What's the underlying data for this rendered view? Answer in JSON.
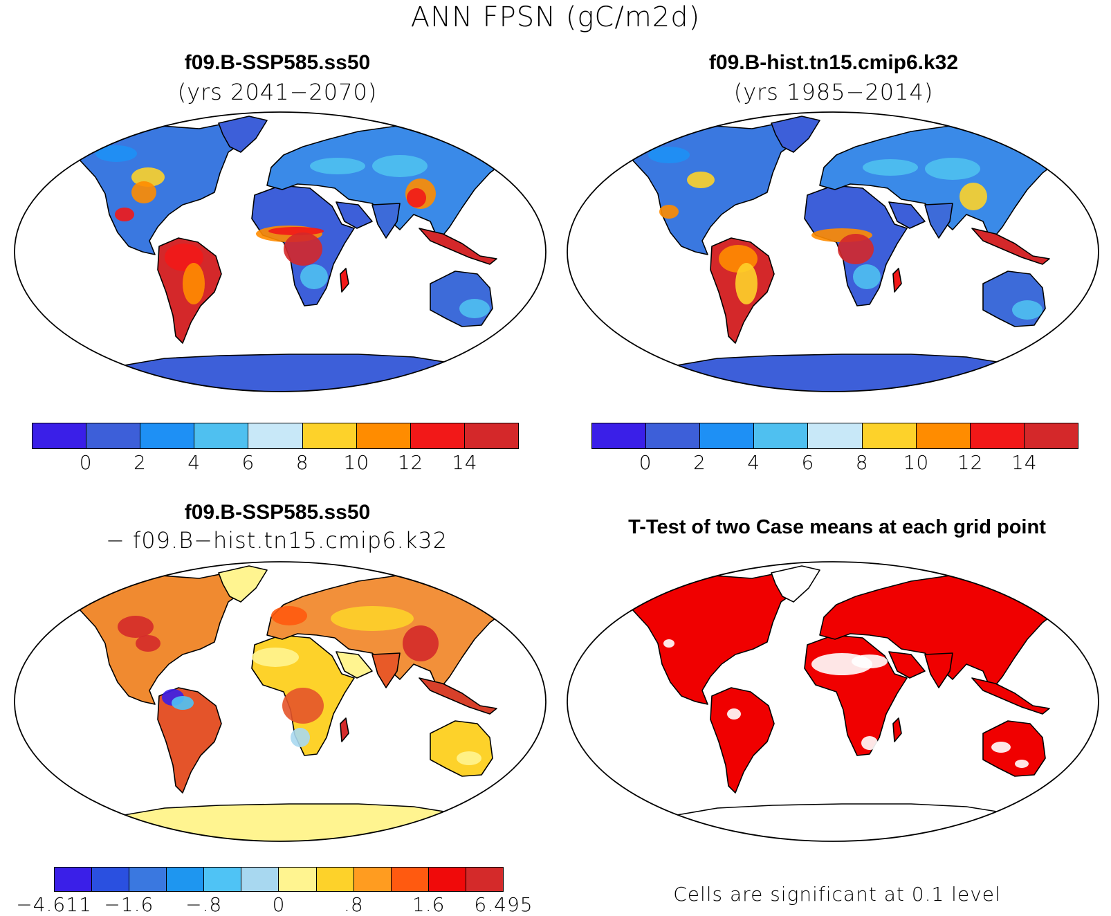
{
  "figure": {
    "title": "ANN FPSN (gC/m2d)"
  },
  "panels": [
    {
      "id": "case1",
      "title": "f09.B-SSP585.ss50",
      "subtitle": "(yrs 2041−2070)",
      "land_color": "#3d6bd9",
      "colorbar": {
        "colors": [
          "#3a1fe8",
          "#3d5fd9",
          "#1e90f5",
          "#4fc0f0",
          "#c8e8f8",
          "#fdd22a",
          "#ff8c00",
          "#f21818",
          "#d4282a"
        ],
        "ticks": [
          "0",
          "2",
          "4",
          "6",
          "8",
          "10",
          "12",
          "14"
        ]
      }
    },
    {
      "id": "case2",
      "title": "f09.B-hist.tn15.cmip6.k32",
      "subtitle": "(yrs 1985−2014)",
      "land_color": "#3d6bd9",
      "colorbar": {
        "colors": [
          "#3a1fe8",
          "#3d5fd9",
          "#1e90f5",
          "#4fc0f0",
          "#c8e8f8",
          "#fdd22a",
          "#ff8c00",
          "#f21818",
          "#d4282a"
        ],
        "ticks": [
          "0",
          "2",
          "4",
          "6",
          "8",
          "10",
          "12",
          "14"
        ]
      }
    },
    {
      "id": "difference",
      "title": "f09.B-SSP585.ss50",
      "subtitle": "− f09.B−hist.tn15.cmip6.k32",
      "land_color": "#e6a040",
      "colorbar": {
        "colors": [
          "#3a1fe8",
          "#2a50e0",
          "#3a78e0",
          "#1e96f0",
          "#4fc3f5",
          "#a8d8f0",
          "#fff490",
          "#fdd22a",
          "#ff9c20",
          "#ff5a10",
          "#f00a0a",
          "#d42a2a"
        ],
        "ticks": [
          "−4.611",
          "−1.6",
          "−.8",
          "0",
          ".8",
          "1.6",
          "6.495"
        ]
      }
    },
    {
      "id": "ttest",
      "title": "T-Test of two Case means at each grid point",
      "land_color": "#f00000",
      "note": "Cells are significant at 0.1 level"
    }
  ]
}
